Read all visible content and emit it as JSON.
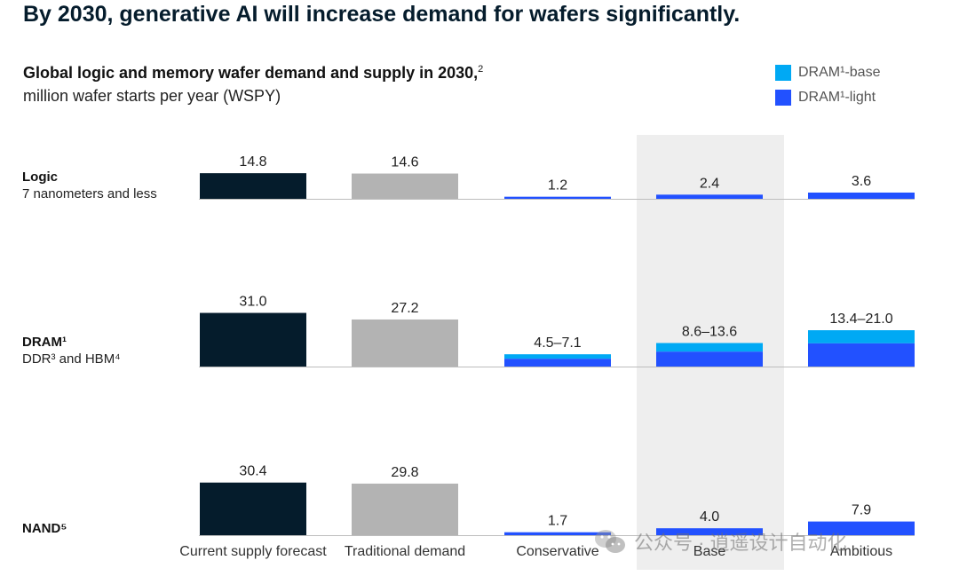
{
  "headline": "By 2030, generative AI will increase demand for wafers significantly.",
  "subtitle": "Global logic and memory wafer demand and supply in 2030,",
  "subtitle_sup": "2",
  "units": "million wafer starts per year (WSPY)",
  "legend": [
    {
      "label": "DRAM¹-base",
      "color": "#00a9f4"
    },
    {
      "label": "DRAM¹-light",
      "color": "#2251ff"
    }
  ],
  "rows": [
    {
      "label": "Logic",
      "sublabel": "7 nanometers and less"
    },
    {
      "label": "DRAM¹",
      "sublabel": "DDR³ and HBM⁴"
    },
    {
      "label": "NAND⁵",
      "sublabel": ""
    }
  ],
  "watermark": "公众号 · 逍遥设计自动化",
  "colors": {
    "supply": "#051c2c",
    "traditional": "#b3b3b3",
    "genai": "#2251ff",
    "dram_base": "#00a9f4",
    "highlight": "#eeeeee",
    "baseline": "#bdbdbd"
  },
  "chart_data": {
    "type": "bar",
    "title": "Global logic and memory wafer demand and supply in 2030",
    "ylabel": "million wafer starts per year (WSPY)",
    "categories": [
      "Current supply forecast",
      "Traditional demand",
      "Conservative",
      "Base",
      "Ambitious"
    ],
    "highlighted_category": "Base",
    "panels": [
      {
        "name": "Logic",
        "values": [
          14.8,
          14.6,
          1.2,
          2.4,
          3.6
        ],
        "labels": [
          "14.8",
          "14.6",
          "1.2",
          "2.4",
          "3.6"
        ]
      },
      {
        "name": "DRAM",
        "values": [
          31.0,
          27.2,
          4.5,
          8.6,
          13.4
        ],
        "ranges_high": [
          null,
          null,
          7.1,
          13.6,
          21.0
        ],
        "labels": [
          "31.0",
          "27.2",
          "4.5–7.1",
          "8.6–13.6",
          "13.4–21.0"
        ]
      },
      {
        "name": "NAND",
        "values": [
          30.4,
          29.8,
          1.7,
          4.0,
          7.9
        ],
        "labels": [
          "30.4",
          "29.8",
          "1.7",
          "4.0",
          "7.9"
        ]
      }
    ],
    "series_colors": [
      "supply",
      "traditional",
      "genai",
      "genai",
      "genai"
    ],
    "legend": [
      "DRAM¹-base",
      "DRAM¹-light"
    ],
    "legend_position": "top-right"
  }
}
